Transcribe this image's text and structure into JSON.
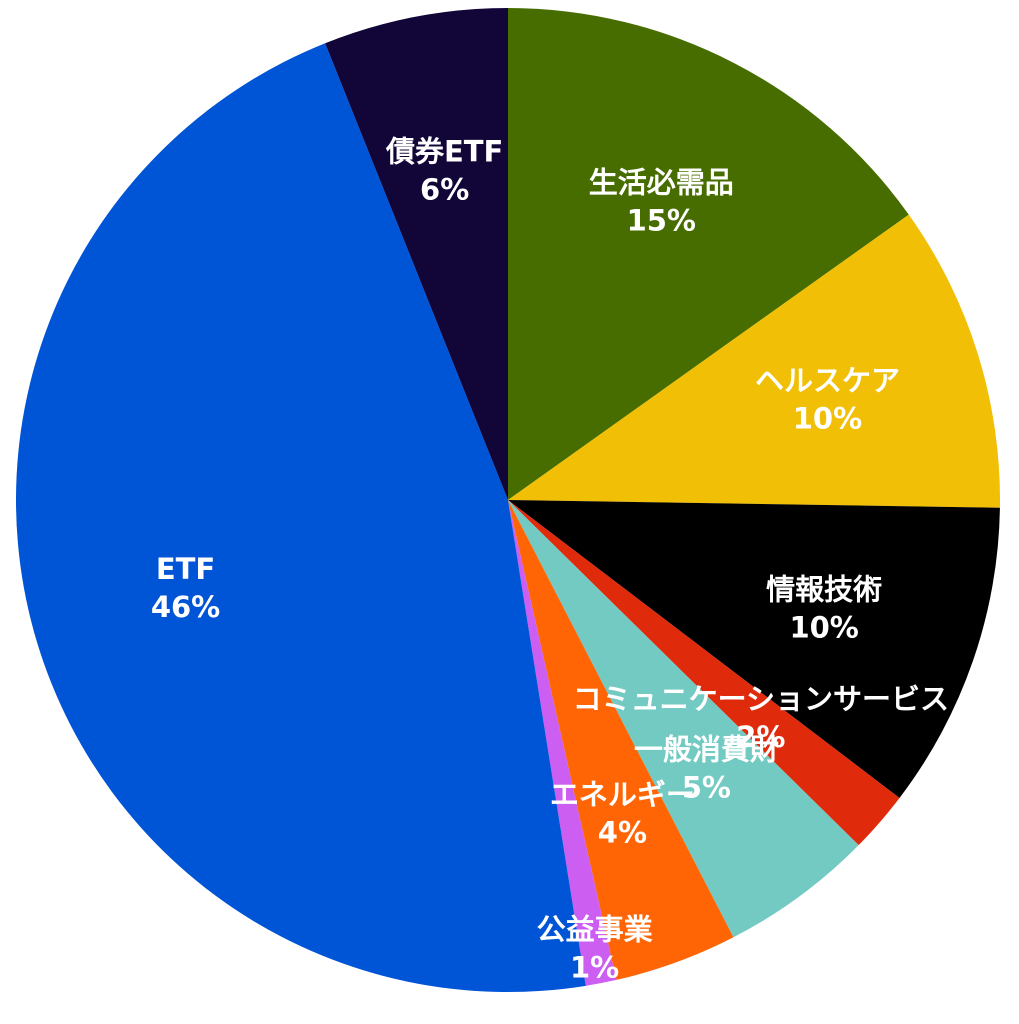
{
  "chart_data": {
    "type": "pie",
    "categories": [
      "生活必需品",
      "ヘルスケア",
      "情報技術",
      "コミュニケーションサービス",
      "一般消費財",
      "エネルギー",
      "公益事業",
      "ETF",
      "債券ETF"
    ],
    "values": [
      15,
      10,
      10,
      2,
      5,
      4,
      1,
      46,
      6
    ],
    "value_labels": [
      "15%",
      "10%",
      "10%",
      "2%",
      "5%",
      "4%",
      "1%",
      "46%",
      "6%"
    ],
    "colors": [
      "#476d00",
      "#f0bf06",
      "#000000",
      "#df2a0c",
      "#72cac2",
      "#ff6505",
      "#cc5ef2",
      "#0054d6",
      "#120538"
    ]
  }
}
